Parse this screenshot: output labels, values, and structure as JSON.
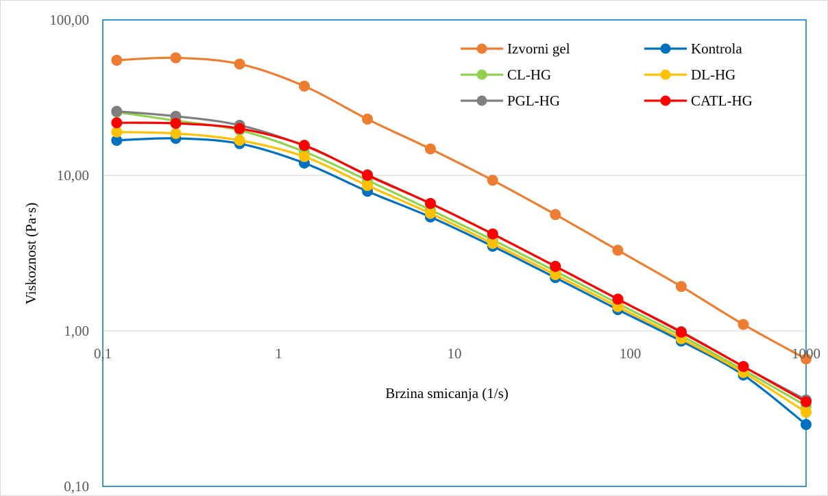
{
  "chart_data": {
    "type": "line",
    "title": "",
    "xlabel": "Brzina smicanja (1/s)",
    "ylabel": "Viskoznost (Pa·s)",
    "x_scale": "log",
    "y_scale": "log",
    "xlim": [
      0.1,
      1000
    ],
    "ylim": [
      0.1,
      100
    ],
    "x_ticks": [
      {
        "value": 0.1,
        "label": "0,1"
      },
      {
        "value": 1,
        "label": "1"
      },
      {
        "value": 10,
        "label": "10"
      },
      {
        "value": 100,
        "label": "100"
      },
      {
        "value": 1000,
        "label": "1000"
      }
    ],
    "y_ticks": [
      {
        "value": 0.1,
        "label": "0,10"
      },
      {
        "value": 1,
        "label": "1,00"
      },
      {
        "value": 10,
        "label": "10,00"
      },
      {
        "value": 100,
        "label": "100,00"
      }
    ],
    "grid": {
      "horizontal": true,
      "vertical": false
    },
    "legend_position": "top-right",
    "x": [
      0.12,
      0.26,
      0.6,
      1.4,
      3.2,
      7.3,
      16.5,
      37.5,
      85,
      195,
      440,
      1000
    ],
    "series": [
      {
        "name": "Izvorni gel",
        "color": "#ED7D31",
        "values": [
          55,
          57,
          52,
          37.5,
          23,
          14.8,
          9.3,
          5.6,
          3.3,
          1.93,
          1.1,
          0.66
        ]
      },
      {
        "name": "Kontrola",
        "color": "#0070C0",
        "values": [
          16.8,
          17.3,
          16.0,
          12.0,
          7.9,
          5.4,
          3.5,
          2.2,
          1.37,
          0.86,
          0.52,
          0.25
        ]
      },
      {
        "name": "CL-HG",
        "color": "#92D050",
        "values": [
          25.5,
          22.5,
          19.5,
          14.2,
          9.3,
          6.0,
          3.85,
          2.42,
          1.5,
          0.93,
          0.56,
          0.33
        ]
      },
      {
        "name": "DL-HG",
        "color": "#FFC000",
        "values": [
          19.0,
          18.6,
          16.8,
          13.2,
          8.6,
          5.7,
          3.65,
          2.3,
          1.43,
          0.89,
          0.54,
          0.3
        ]
      },
      {
        "name": "PGL-HG",
        "color": "#7F7F7F",
        "values": [
          25.8,
          24.0,
          21.0,
          15.5,
          10.1,
          6.6,
          4.2,
          2.6,
          1.6,
          0.99,
          0.59,
          0.36
        ]
      },
      {
        "name": "CATL-HG",
        "color": "#FF0000",
        "values": [
          21.8,
          21.6,
          20.0,
          15.6,
          10.0,
          6.6,
          4.2,
          2.6,
          1.6,
          0.98,
          0.59,
          0.35
        ]
      }
    ],
    "legend_layout": [
      [
        "Izvorni gel",
        "Kontrola"
      ],
      [
        "CL-HG",
        "DL-HG"
      ],
      [
        "PGL-HG",
        "CATL-HG"
      ]
    ]
  }
}
